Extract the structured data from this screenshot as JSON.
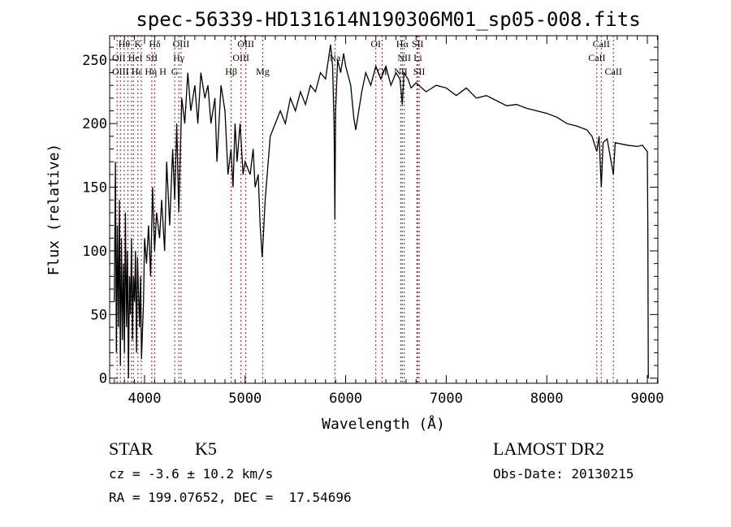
{
  "chart_data": {
    "type": "line",
    "title": "spec-56339-HD131614N190306M01_sp05-008.fits",
    "xlabel": "Wavelength (Å)",
    "ylabel": "Flux (relative)",
    "xlim": [
      3653,
      9105
    ],
    "ylim": [
      -4,
      269
    ],
    "xticks": [
      4000,
      5000,
      6000,
      7000,
      8000,
      9000
    ],
    "yticks": [
      0,
      50,
      100,
      150,
      200,
      250
    ],
    "line_color": "#000000",
    "marker_color": "#8b1a1a",
    "spectrum": [
      [
        3700,
        60
      ],
      [
        3710,
        170
      ],
      [
        3720,
        20
      ],
      [
        3730,
        120
      ],
      [
        3740,
        40
      ],
      [
        3750,
        140
      ],
      [
        3760,
        10
      ],
      [
        3770,
        110
      ],
      [
        3780,
        30
      ],
      [
        3790,
        90
      ],
      [
        3800,
        20
      ],
      [
        3810,
        130
      ],
      [
        3820,
        40
      ],
      [
        3830,
        100
      ],
      [
        3840,
        0
      ],
      [
        3850,
        80
      ],
      [
        3860,
        50
      ],
      [
        3870,
        110
      ],
      [
        3880,
        30
      ],
      [
        3890,
        80
      ],
      [
        3900,
        60
      ],
      [
        3910,
        100
      ],
      [
        3920,
        20
      ],
      [
        3930,
        95
      ],
      [
        3950,
        40
      ],
      [
        3960,
        80
      ],
      [
        3970,
        15
      ],
      [
        3990,
        60
      ],
      [
        4000,
        110
      ],
      [
        4020,
        90
      ],
      [
        4040,
        120
      ],
      [
        4060,
        80
      ],
      [
        4080,
        150
      ],
      [
        4100,
        100
      ],
      [
        4120,
        130
      ],
      [
        4150,
        110
      ],
      [
        4170,
        140
      ],
      [
        4200,
        100
      ],
      [
        4220,
        170
      ],
      [
        4250,
        120
      ],
      [
        4280,
        180
      ],
      [
        4300,
        140
      ],
      [
        4320,
        200
      ],
      [
        4340,
        130
      ],
      [
        4370,
        220
      ],
      [
        4400,
        200
      ],
      [
        4430,
        240
      ],
      [
        4460,
        210
      ],
      [
        4500,
        230
      ],
      [
        4530,
        200
      ],
      [
        4560,
        240
      ],
      [
        4600,
        220
      ],
      [
        4630,
        230
      ],
      [
        4660,
        200
      ],
      [
        4700,
        220
      ],
      [
        4720,
        170
      ],
      [
        4760,
        230
      ],
      [
        4800,
        210
      ],
      [
        4830,
        160
      ],
      [
        4860,
        180
      ],
      [
        4880,
        150
      ],
      [
        4900,
        200
      ],
      [
        4920,
        170
      ],
      [
        4950,
        200
      ],
      [
        4980,
        160
      ],
      [
        5000,
        170
      ],
      [
        5050,
        160
      ],
      [
        5080,
        180
      ],
      [
        5100,
        150
      ],
      [
        5130,
        160
      ],
      [
        5150,
        120
      ],
      [
        5170,
        95
      ],
      [
        5180,
        110
      ],
      [
        5200,
        140
      ],
      [
        5250,
        190
      ],
      [
        5300,
        200
      ],
      [
        5350,
        210
      ],
      [
        5400,
        200
      ],
      [
        5450,
        220
      ],
      [
        5500,
        210
      ],
      [
        5550,
        225
      ],
      [
        5600,
        215
      ],
      [
        5650,
        230
      ],
      [
        5700,
        225
      ],
      [
        5750,
        240
      ],
      [
        5800,
        235
      ],
      [
        5850,
        262
      ],
      [
        5870,
        245
      ],
      [
        5885,
        200
      ],
      [
        5893,
        125
      ],
      [
        5900,
        210
      ],
      [
        5920,
        250
      ],
      [
        5950,
        240
      ],
      [
        5980,
        255
      ],
      [
        6000,
        245
      ],
      [
        6050,
        230
      ],
      [
        6080,
        205
      ],
      [
        6100,
        195
      ],
      [
        6130,
        210
      ],
      [
        6160,
        225
      ],
      [
        6200,
        240
      ],
      [
        6250,
        230
      ],
      [
        6300,
        245
      ],
      [
        6350,
        235
      ],
      [
        6400,
        245
      ],
      [
        6450,
        230
      ],
      [
        6500,
        240
      ],
      [
        6540,
        235
      ],
      [
        6563,
        215
      ],
      [
        6580,
        240
      ],
      [
        6620,
        235
      ],
      [
        6650,
        228
      ],
      [
        6700,
        232
      ],
      [
        6800,
        225
      ],
      [
        6900,
        230
      ],
      [
        7000,
        228
      ],
      [
        7100,
        222
      ],
      [
        7200,
        228
      ],
      [
        7300,
        220
      ],
      [
        7400,
        222
      ],
      [
        7500,
        218
      ],
      [
        7600,
        214
      ],
      [
        7700,
        215
      ],
      [
        7800,
        212
      ],
      [
        7900,
        210
      ],
      [
        8000,
        208
      ],
      [
        8100,
        205
      ],
      [
        8200,
        200
      ],
      [
        8300,
        198
      ],
      [
        8400,
        195
      ],
      [
        8450,
        190
      ],
      [
        8498,
        178
      ],
      [
        8520,
        190
      ],
      [
        8542,
        150
      ],
      [
        8560,
        185
      ],
      [
        8600,
        188
      ],
      [
        8662,
        160
      ],
      [
        8680,
        185
      ],
      [
        8800,
        183
      ],
      [
        8900,
        182
      ],
      [
        8950,
        183
      ],
      [
        9000,
        178
      ],
      [
        9005,
        120
      ],
      [
        9010,
        0
      ]
    ],
    "lines": [
      {
        "label": "Hθ",
        "wl": 3798,
        "row": 0
      },
      {
        "label": "K",
        "wl": 3934,
        "row": 0
      },
      {
        "label": "Hδ",
        "wl": 4102,
        "row": 0
      },
      {
        "label": "OIII",
        "wl": 4363,
        "row": 0
      },
      {
        "label": "OIII",
        "wl": 5007,
        "row": 0
      },
      {
        "label": "OI",
        "wl": 6300,
        "row": 0
      },
      {
        "label": "Hα",
        "wl": 6563,
        "row": 0
      },
      {
        "label": "SII",
        "wl": 6716,
        "row": 0
      },
      {
        "label": "CaII",
        "wl": 8542,
        "row": 0
      },
      {
        "label": "OII",
        "wl": 3727,
        "row": 1
      },
      {
        "label": "HeI",
        "wl": 3889,
        "row": 1
      },
      {
        "label": "SII",
        "wl": 4072,
        "row": 1
      },
      {
        "label": "Hγ",
        "wl": 4340,
        "row": 1
      },
      {
        "label": "OIII",
        "wl": 4959,
        "row": 1
      },
      {
        "label": "Na",
        "wl": 5893,
        "row": 1
      },
      {
        "label": "NII",
        "wl": 6583,
        "row": 1
      },
      {
        "label": "Li",
        "wl": 6708,
        "row": 1
      },
      {
        "label": "CaII",
        "wl": 8498,
        "row": 1
      },
      {
        "label": "OIII",
        "wl": 3760,
        "row": 2
      },
      {
        "label": "Hε",
        "wl": 3835,
        "row": 2
      },
      {
        "label": "Hη",
        "wl": 3870,
        "row": 2
      },
      {
        "label": "H",
        "wl": 3968,
        "row": 2
      },
      {
        "label": "G",
        "wl": 4300,
        "row": 2
      },
      {
        "label": "Hβ",
        "wl": 4861,
        "row": 2
      },
      {
        "label": "Mg",
        "wl": 5175,
        "row": 2
      },
      {
        "label": "OI",
        "wl": 6363,
        "row": 2
      },
      {
        "label": "NII",
        "wl": 6548,
        "row": 2
      },
      {
        "label": "SII",
        "wl": 6731,
        "row": 2
      },
      {
        "label": "CaII",
        "wl": 8662,
        "row": 2
      }
    ]
  },
  "info": {
    "object_type": "STAR",
    "subclass": "K5",
    "cz": "cz = -3.6 ± 10.2 km/s",
    "coords": "RA = 199.07652, DEC =  17.54696",
    "survey": "LAMOST DR2",
    "obs_date": "Obs-Date: 20130215"
  }
}
